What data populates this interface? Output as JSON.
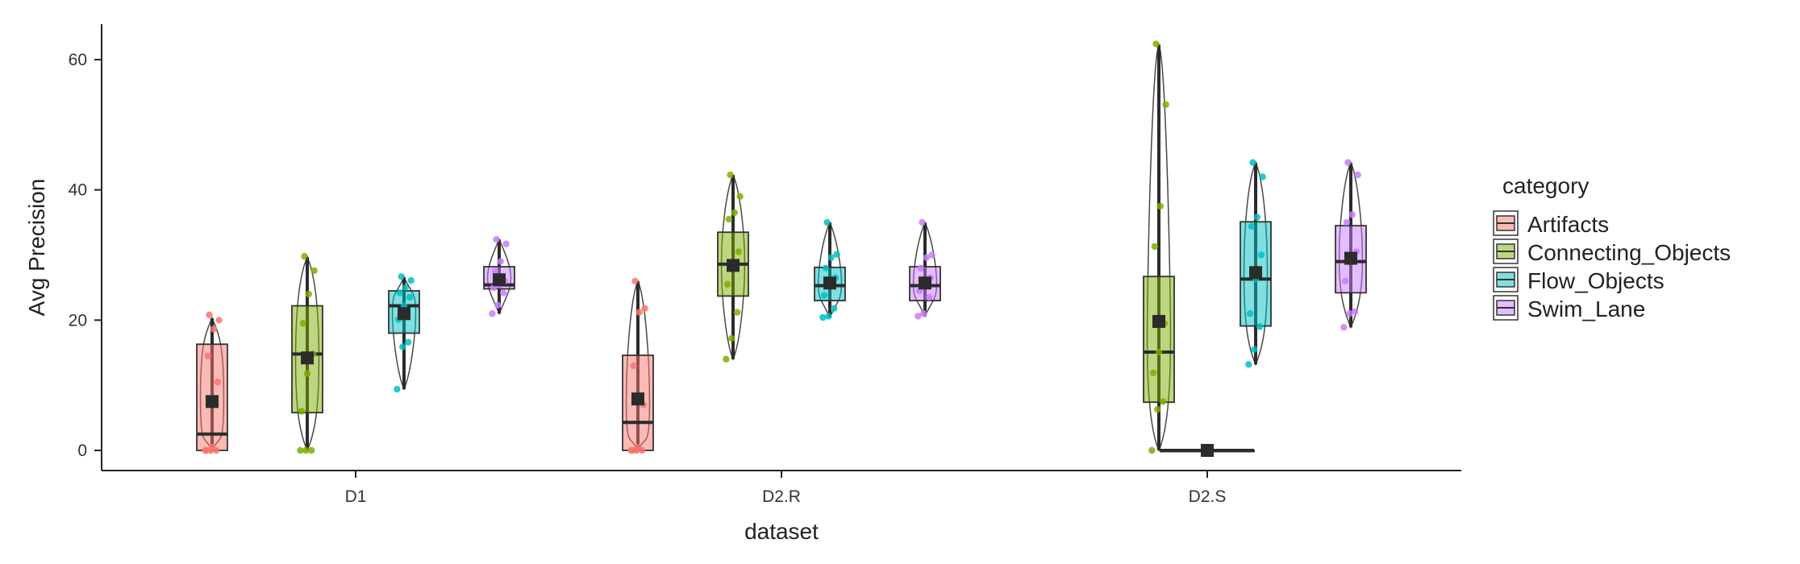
{
  "chart_data": {
    "type": "box",
    "xlabel": "dataset",
    "ylabel": "Avg Precision",
    "ylim": [
      -3,
      65
    ],
    "yticks": [
      0,
      20,
      40,
      60
    ],
    "grid": false,
    "legend": {
      "title": "category",
      "placement": "right"
    },
    "categories": [
      "D1",
      "D2.R",
      "D2.S"
    ],
    "series": [
      {
        "name": "Artifacts",
        "color": "#F8766D",
        "boxes": [
          {
            "min": 0,
            "q1": 0,
            "median": 2.5,
            "q3": 16.3,
            "max": 20.3,
            "mean": 7.5,
            "points": [
              0,
              0,
              0,
              0,
              0.5,
              10.5,
              14.5,
              18.6,
              20,
              20.8
            ]
          },
          {
            "min": 0,
            "q1": 0,
            "median": 4.3,
            "q3": 14.6,
            "max": 26,
            "mean": 7.9,
            "points": [
              0,
              0,
              0,
              0,
              0.5,
              7,
              13,
              21.2,
              21.8,
              26
            ]
          },
          {
            "min": 0,
            "q1": 0,
            "median": 0,
            "q3": 0,
            "max": 0,
            "mean": 0,
            "points": [
              0,
              0,
              0,
              0,
              0,
              0,
              0,
              0,
              0,
              0
            ]
          }
        ]
      },
      {
        "name": "Connecting_Objects",
        "color": "#7CAE00",
        "boxes": [
          {
            "min": 0,
            "q1": 5.8,
            "median": 14.8,
            "q3": 22.2,
            "max": 29.7,
            "mean": 14.2,
            "points": [
              0,
              0,
              0,
              6,
              11.8,
              14.8,
              19.5,
              24,
              27.6,
              29.8
            ]
          },
          {
            "min": 14,
            "q1": 23.7,
            "median": 28.6,
            "q3": 33.5,
            "max": 42.3,
            "mean": 28.4,
            "points": [
              14,
              17.2,
              21.2,
              25.5,
              28.6,
              30.5,
              35.5,
              36.5,
              39,
              42.3
            ]
          },
          {
            "min": 0,
            "q1": 7.4,
            "median": 15.1,
            "q3": 26.7,
            "max": 62.3,
            "mean": 19.8,
            "points": [
              0,
              6.3,
              7.5,
              11.9,
              15.1,
              19.5,
              31.3,
              37.5,
              53.1,
              62.4
            ]
          }
        ]
      },
      {
        "name": "Flow_Objects",
        "color": "#00BFC4",
        "boxes": [
          {
            "min": 9.4,
            "q1": 18,
            "median": 22.2,
            "q3": 24.5,
            "max": 26.6,
            "mean": 21,
            "points": [
              9.4,
              15.9,
              16.6,
              20.1,
              22.2,
              23.5,
              24.2,
              25,
              26.1,
              26.7
            ]
          },
          {
            "min": 20.4,
            "q1": 23,
            "median": 25.3,
            "q3": 28.1,
            "max": 35,
            "mean": 25.7,
            "points": [
              20.4,
              20.6,
              21.8,
              23.8,
              25.3,
              26.5,
              28,
              29.6,
              30.1,
              35
            ]
          },
          {
            "min": 13.2,
            "q1": 19.1,
            "median": 26.3,
            "q3": 35.1,
            "max": 44.2,
            "mean": 27.3,
            "points": [
              13.2,
              15.5,
              19,
              21,
              26.3,
              30,
              34.4,
              35.8,
              42,
              44.2
            ]
          }
        ]
      },
      {
        "name": "Swim_Lane",
        "color": "#C77CFF",
        "boxes": [
          {
            "min": 21,
            "q1": 24.8,
            "median": 25.4,
            "q3": 28.2,
            "max": 32.4,
            "mean": 26.2,
            "points": [
              21,
              22.3,
              24.2,
              25,
              25.4,
              26,
              27.5,
              29,
              31.7,
              32.4
            ]
          },
          {
            "min": 20.6,
            "q1": 23,
            "median": 25.3,
            "q3": 28.2,
            "max": 35,
            "mean": 25.7,
            "points": [
              20.6,
              21,
              23.5,
              24.5,
              25.3,
              26.5,
              28,
              29.6,
              30,
              35
            ]
          },
          {
            "min": 18.9,
            "q1": 24.2,
            "median": 29,
            "q3": 34.5,
            "max": 44.2,
            "mean": 29.5,
            "points": [
              18.9,
              21,
              21.3,
              26,
              29,
              30.5,
              35,
              36.2,
              42.3,
              44.2
            ]
          }
        ]
      }
    ]
  }
}
